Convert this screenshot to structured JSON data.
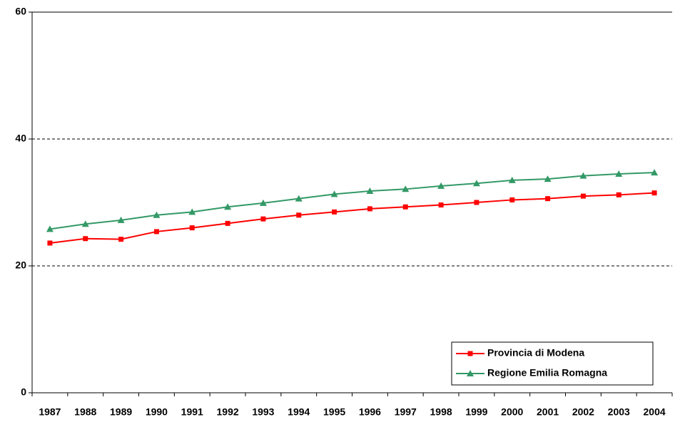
{
  "chart_data": {
    "type": "line",
    "categories": [
      "1987",
      "1988",
      "1989",
      "1990",
      "1991",
      "1992",
      "1993",
      "1994",
      "1995",
      "1996",
      "1997",
      "1998",
      "1999",
      "2000",
      "2001",
      "2002",
      "2003",
      "2004"
    ],
    "series": [
      {
        "name": "Provincia di Modena",
        "color": "#ff0000",
        "marker": "square",
        "values": [
          23.6,
          24.3,
          24.2,
          25.4,
          26.0,
          26.7,
          27.4,
          28.0,
          28.5,
          29.0,
          29.3,
          29.6,
          30.0,
          30.4,
          30.6,
          31.0,
          31.2,
          31.5
        ]
      },
      {
        "name": "Regione Emilia Romagna",
        "color": "#339966",
        "marker": "triangle",
        "values": [
          25.8,
          26.6,
          27.2,
          28.0,
          28.5,
          29.3,
          29.9,
          30.6,
          31.3,
          31.8,
          32.1,
          32.6,
          33.0,
          33.5,
          33.7,
          34.2,
          34.5,
          34.7
        ]
      }
    ],
    "ylim": [
      0,
      60
    ],
    "yticks": [
      0,
      20,
      40,
      60
    ],
    "grid": true,
    "legend": "lower right"
  }
}
